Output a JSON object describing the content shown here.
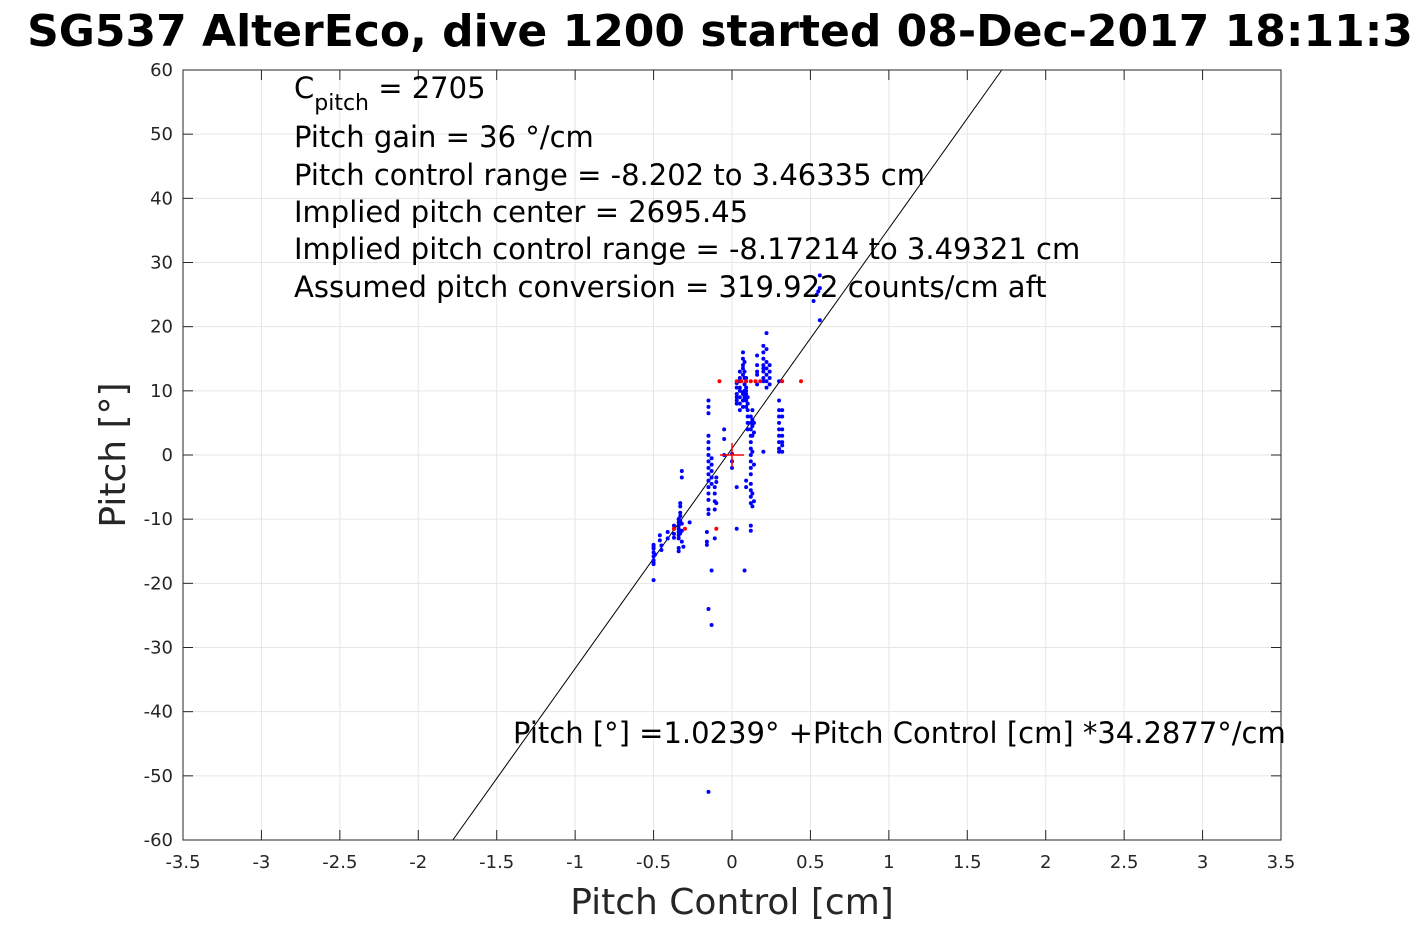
{
  "chart_data": {
    "type": "scatter",
    "title": "SG537 AlterEco, dive 1200 started 08-Dec-2017 18:11:3",
    "xlabel": "Pitch Control [cm]",
    "ylabel": "Pitch [°]",
    "xlim": [
      -3.5,
      3.5
    ],
    "ylim": [
      -60,
      60
    ],
    "xticks": [
      -3.5,
      -3,
      -2.5,
      -2,
      -1.5,
      -1,
      -0.5,
      0,
      0.5,
      1,
      1.5,
      2,
      2.5,
      3,
      3.5
    ],
    "xtick_labels": [
      "-3.5",
      "-3",
      "-2.5",
      "-2",
      "-1.5",
      "-1",
      "-0.5",
      "0",
      "0.5",
      "1",
      "1.5",
      "2",
      "2.5",
      "3",
      "3.5"
    ],
    "yticks": [
      -60,
      -50,
      -40,
      -30,
      -20,
      -10,
      0,
      10,
      20,
      30,
      40,
      50,
      60
    ],
    "ytick_labels": [
      "-60",
      "-50",
      "-40",
      "-30",
      "-20",
      "-10",
      "0",
      "10",
      "20",
      "30",
      "40",
      "50",
      "60"
    ],
    "grid": true,
    "annotations": {
      "cpitch_main": "C",
      "cpitch_sub": "pitch",
      "cpitch_value": " = 2705",
      "pitch_gain": "Pitch gain = 36 °/cm",
      "control_range": "Pitch control range = -8.202 to 3.46335 cm",
      "implied_center": "Implied pitch center = 2695.45",
      "implied_range": "Implied pitch control range = -8.17214 to 3.49321 cm",
      "conversion": "Assumed pitch conversion = 319.922 counts/cm aft",
      "fit_equation": "Pitch [°] =1.0239° +Pitch Control [cm] *34.2877°/cm"
    },
    "fit_line": {
      "intercept": 1.0239,
      "slope": 34.2877
    },
    "center_marker": {
      "x": 0,
      "y": 0,
      "color": "#ff0000"
    },
    "series": [
      {
        "color": "#0000ff",
        "points": [
          [
            -0.5,
            -14
          ],
          [
            -0.5,
            -14.6
          ],
          [
            -0.5,
            -15.2
          ],
          [
            -0.5,
            -15.8
          ],
          [
            -0.5,
            -16.4
          ],
          [
            -0.5,
            -17
          ],
          [
            -0.5,
            -19.5
          ],
          [
            -0.5,
            -14.3
          ],
          [
            -0.49,
            -15.5
          ],
          [
            -0.5,
            -16.8
          ],
          [
            -0.46,
            -12.5
          ],
          [
            -0.46,
            -13.3
          ],
          [
            -0.45,
            -14.1
          ],
          [
            -0.45,
            -14.8
          ],
          [
            -0.41,
            -13
          ],
          [
            -0.41,
            -12
          ],
          [
            -0.37,
            -11.5
          ],
          [
            -0.37,
            -12.3
          ],
          [
            -0.37,
            -11
          ],
          [
            -0.37,
            -12.9
          ],
          [
            -0.34,
            -10
          ],
          [
            -0.34,
            -10.5
          ],
          [
            -0.34,
            -11
          ],
          [
            -0.34,
            -11.5
          ],
          [
            -0.34,
            -12
          ],
          [
            -0.34,
            -12.5
          ],
          [
            -0.34,
            -13
          ],
          [
            -0.34,
            -14.5
          ],
          [
            -0.34,
            -15
          ],
          [
            -0.33,
            -9
          ],
          [
            -0.33,
            -8
          ],
          [
            -0.33,
            -7.5
          ],
          [
            -0.33,
            -9.5
          ],
          [
            -0.33,
            -10.2
          ],
          [
            -0.33,
            -12.2
          ],
          [
            -0.32,
            -2.5
          ],
          [
            -0.32,
            -3.5
          ],
          [
            -0.32,
            -10.7
          ],
          [
            -0.32,
            -11.8
          ],
          [
            -0.32,
            -13.5
          ],
          [
            -0.31,
            -14.3
          ],
          [
            -0.27,
            -10.5
          ],
          [
            -0.16,
            -12
          ],
          [
            -0.16,
            -13.5
          ],
          [
            -0.16,
            -14
          ],
          [
            -0.15,
            -5
          ],
          [
            -0.15,
            -6
          ],
          [
            -0.15,
            -7
          ],
          [
            -0.15,
            -8.5
          ],
          [
            -0.15,
            -9.2
          ],
          [
            -0.15,
            0
          ],
          [
            -0.15,
            -1
          ],
          [
            -0.15,
            -2
          ],
          [
            -0.15,
            -3
          ],
          [
            -0.15,
            -4
          ],
          [
            -0.15,
            1
          ],
          [
            -0.15,
            2
          ],
          [
            -0.15,
            3
          ],
          [
            -0.15,
            6.5
          ],
          [
            -0.15,
            7.5
          ],
          [
            -0.15,
            8.5
          ],
          [
            -0.15,
            -24
          ],
          [
            -0.15,
            -52.5
          ],
          [
            -0.13,
            -0.5
          ],
          [
            -0.13,
            -1.5
          ],
          [
            -0.13,
            -2.5
          ],
          [
            -0.13,
            -3.5
          ],
          [
            -0.13,
            -4.5
          ],
          [
            -0.13,
            -18
          ],
          [
            -0.13,
            -26.5
          ],
          [
            -0.11,
            -5
          ],
          [
            -0.11,
            -6
          ],
          [
            -0.11,
            -7.2
          ],
          [
            -0.11,
            -8.5
          ],
          [
            -0.11,
            -13
          ],
          [
            -0.1,
            -7.5
          ],
          [
            -0.1,
            -3.5
          ],
          [
            -0.1,
            -4.2
          ],
          [
            -0.05,
            0
          ],
          [
            -0.05,
            4
          ],
          [
            -0.05,
            2.5
          ],
          [
            0,
            0.2
          ],
          [
            0,
            -1
          ],
          [
            0,
            -2
          ],
          [
            0.03,
            -5
          ],
          [
            0.03,
            -11.5
          ],
          [
            0.03,
            8
          ],
          [
            0.03,
            8.5
          ],
          [
            0.03,
            9
          ],
          [
            0.03,
            9.5
          ],
          [
            0.03,
            10.5
          ],
          [
            0.03,
            11.2
          ],
          [
            0.05,
            7
          ],
          [
            0.05,
            8
          ],
          [
            0.05,
            9
          ],
          [
            0.05,
            10
          ],
          [
            0.05,
            12
          ],
          [
            0.05,
            13
          ],
          [
            0.05,
            10.5
          ],
          [
            0.05,
            11.5
          ],
          [
            0.07,
            7.5
          ],
          [
            0.07,
            8.5
          ],
          [
            0.07,
            9.5
          ],
          [
            0.07,
            12.5
          ],
          [
            0.07,
            13.5
          ],
          [
            0.07,
            14
          ],
          [
            0.07,
            15
          ],
          [
            0.07,
            16
          ],
          [
            0.07,
            9.8
          ],
          [
            0.08,
            9
          ],
          [
            0.08,
            10
          ],
          [
            0.08,
            11
          ],
          [
            0.08,
            13
          ],
          [
            0.08,
            14.5
          ],
          [
            0.08,
            12
          ],
          [
            0.09,
            7.5
          ],
          [
            0.09,
            8.5
          ],
          [
            0.09,
            9.5
          ],
          [
            0.09,
            10.5
          ],
          [
            0.09,
            11.5
          ],
          [
            0.09,
            9
          ],
          [
            0.09,
            10
          ],
          [
            0.09,
            12
          ],
          [
            0.1,
            5
          ],
          [
            0.1,
            6
          ],
          [
            0.1,
            7
          ],
          [
            0.1,
            8
          ],
          [
            0.1,
            9
          ],
          [
            0.1,
            4
          ],
          [
            0.08,
            -18
          ],
          [
            0.09,
            -4
          ],
          [
            0.09,
            -5
          ],
          [
            0.12,
            2
          ],
          [
            0.12,
            3
          ],
          [
            0.12,
            4
          ],
          [
            0.12,
            5
          ],
          [
            0.12,
            6
          ],
          [
            0.12,
            1
          ],
          [
            0.12,
            0
          ],
          [
            0.12,
            -1
          ],
          [
            0.12,
            -2
          ],
          [
            0.12,
            -3
          ],
          [
            0.12,
            -4.5
          ],
          [
            0.12,
            -5.5
          ],
          [
            0.12,
            -6.5
          ],
          [
            0.12,
            -7.5
          ],
          [
            0.12,
            -11
          ],
          [
            0.12,
            -11.8
          ],
          [
            0.13,
            3
          ],
          [
            0.13,
            4.5
          ],
          [
            0.13,
            5.5
          ],
          [
            0.13,
            7
          ],
          [
            0.13,
            0.5
          ],
          [
            0.13,
            -6
          ],
          [
            0.13,
            -8
          ],
          [
            0.14,
            5
          ],
          [
            0.14,
            3.5
          ],
          [
            0.14,
            -1.5
          ],
          [
            0.14,
            -7.2
          ],
          [
            0.16,
            11
          ],
          [
            0.16,
            12.5
          ],
          [
            0.16,
            14
          ],
          [
            0.16,
            15.5
          ],
          [
            0.16,
            13
          ],
          [
            0.2,
            11.5
          ],
          [
            0.2,
            13
          ],
          [
            0.2,
            14
          ],
          [
            0.2,
            15
          ],
          [
            0.2,
            16
          ],
          [
            0.2,
            17
          ],
          [
            0.2,
            13.5
          ],
          [
            0.2,
            12
          ],
          [
            0.22,
            10.5
          ],
          [
            0.22,
            11.5
          ],
          [
            0.22,
            12.5
          ],
          [
            0.22,
            13.5
          ],
          [
            0.22,
            14.5
          ],
          [
            0.22,
            19
          ],
          [
            0.22,
            16.5
          ],
          [
            0.24,
            11
          ],
          [
            0.24,
            13
          ],
          [
            0.24,
            14
          ],
          [
            0.24,
            12
          ],
          [
            0.3,
            8.5
          ],
          [
            0.3,
            7
          ],
          [
            0.3,
            6
          ],
          [
            0.3,
            5
          ],
          [
            0.3,
            4
          ],
          [
            0.3,
            3
          ],
          [
            0.3,
            2
          ],
          [
            0.3,
            1
          ],
          [
            0.3,
            0.5
          ],
          [
            0.3,
            11.5
          ],
          [
            0.32,
            7
          ],
          [
            0.32,
            6
          ],
          [
            0.32,
            4
          ],
          [
            0.32,
            3
          ],
          [
            0.32,
            2
          ],
          [
            0.32,
            1.5
          ],
          [
            0.32,
            0.5
          ],
          [
            0.2,
            0.5
          ],
          [
            0.52,
            24
          ],
          [
            0.54,
            25
          ],
          [
            0.55,
            25.5
          ],
          [
            0.56,
            21
          ],
          [
            0.56,
            28
          ],
          [
            0.56,
            26
          ]
        ]
      },
      {
        "color": "#ff0000",
        "points": [
          [
            -0.1,
            -11.5
          ],
          [
            -0.37,
            -11.5
          ],
          [
            -0.3,
            -11.5
          ],
          [
            -0.08,
            11.5
          ],
          [
            0.03,
            11.5
          ],
          [
            0.06,
            11.5
          ],
          [
            0.09,
            11.5
          ],
          [
            0.12,
            11.5
          ],
          [
            0.15,
            11.5
          ],
          [
            0.18,
            11.5
          ],
          [
            0.32,
            11.5
          ],
          [
            0.44,
            11.5
          ]
        ]
      }
    ]
  }
}
